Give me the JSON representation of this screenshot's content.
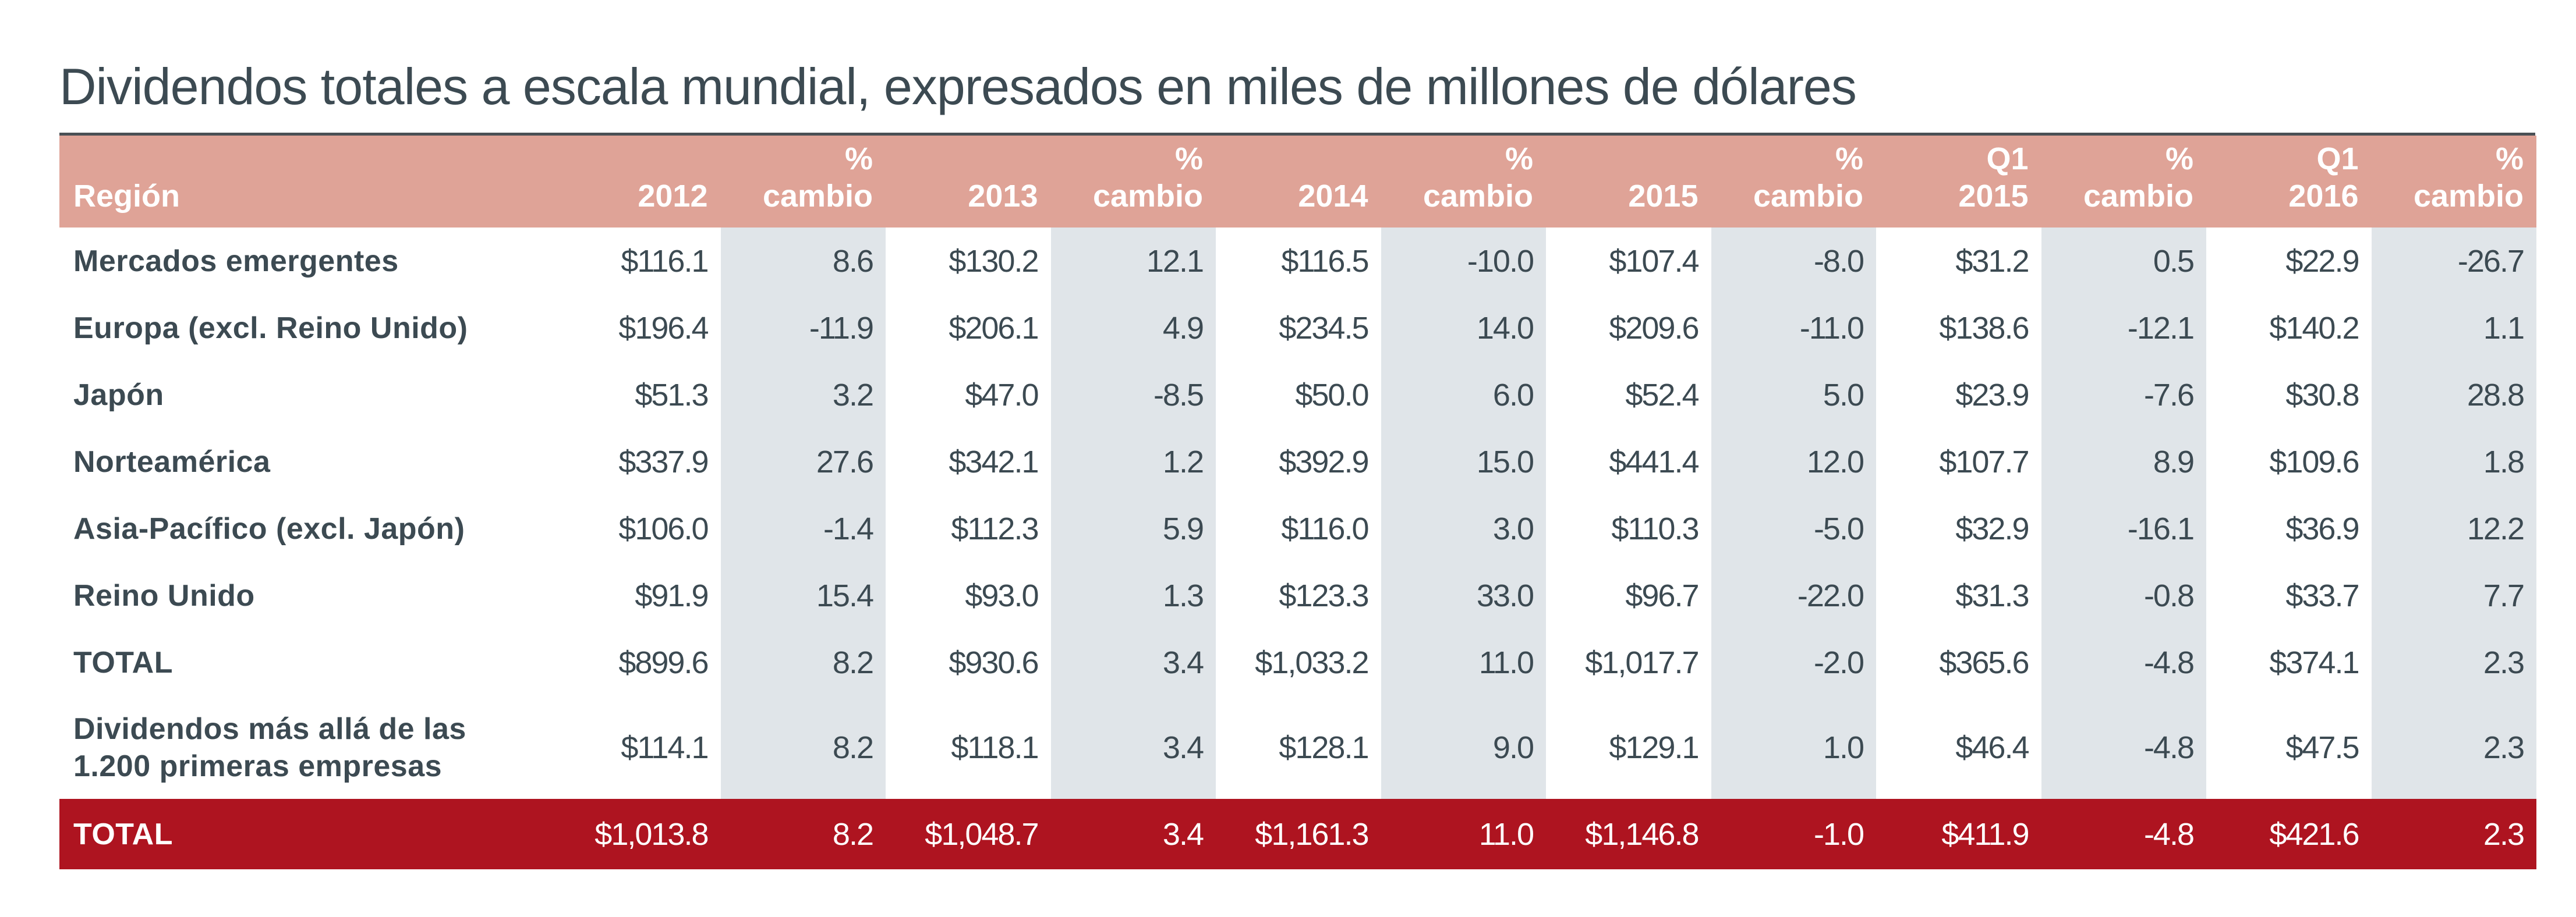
{
  "title": "Dividendos totales a escala mundial, expresados en miles de millones de dólares",
  "colors": {
    "header": "#dfa397",
    "shade": "#e0e5e9",
    "total_bar": "#ae1420",
    "text": "#3c4a52"
  },
  "columns": [
    {
      "line1": "",
      "line2": "Región"
    },
    {
      "line1": "",
      "line2": "2012"
    },
    {
      "line1": "%",
      "line2": "cambio"
    },
    {
      "line1": "",
      "line2": "2013"
    },
    {
      "line1": "%",
      "line2": "cambio"
    },
    {
      "line1": "",
      "line2": "2014"
    },
    {
      "line1": "%",
      "line2": "cambio"
    },
    {
      "line1": "",
      "line2": "2015"
    },
    {
      "line1": "%",
      "line2": "cambio"
    },
    {
      "line1": "Q1",
      "line2": "2015"
    },
    {
      "line1": "%",
      "line2": "cambio"
    },
    {
      "line1": "Q1",
      "line2": "2016"
    },
    {
      "line1": "%",
      "line2": "cambio"
    }
  ],
  "rows": [
    [
      "Mercados emergentes",
      "$116.1",
      "8.6",
      "$130.2",
      "12.1",
      "$116.5",
      "-10.0",
      "$107.4",
      "-8.0",
      "$31.2",
      "0.5",
      "$22.9",
      "-26.7"
    ],
    [
      "Europa (excl. Reino Unido)",
      "$196.4",
      "-11.9",
      "$206.1",
      "4.9",
      "$234.5",
      "14.0",
      "$209.6",
      "-11.0",
      "$138.6",
      "-12.1",
      "$140.2",
      "1.1"
    ],
    [
      "Japón",
      "$51.3",
      "3.2",
      "$47.0",
      "-8.5",
      "$50.0",
      "6.0",
      "$52.4",
      "5.0",
      "$23.9",
      "-7.6",
      "$30.8",
      "28.8"
    ],
    [
      "Norteamérica",
      "$337.9",
      "27.6",
      "$342.1",
      "1.2",
      "$392.9",
      "15.0",
      "$441.4",
      "12.0",
      "$107.7",
      "8.9",
      "$109.6",
      "1.8"
    ],
    [
      "Asia-Pacífico (excl. Japón)",
      "$106.0",
      "-1.4",
      "$112.3",
      "5.9",
      "$116.0",
      "3.0",
      "$110.3",
      "-5.0",
      "$32.9",
      "-16.1",
      "$36.9",
      "12.2"
    ],
    [
      "Reino Unido",
      "$91.9",
      "15.4",
      "$93.0",
      "1.3",
      "$123.3",
      "33.0",
      "$96.7",
      "-22.0",
      "$31.3",
      "-0.8",
      "$33.7",
      "7.7"
    ],
    [
      "TOTAL",
      "$899.6",
      "8.2",
      "$930.6",
      "3.4",
      "$1,033.2",
      "11.0",
      "$1,017.7",
      "-2.0",
      "$365.6",
      "-4.8",
      "$374.1",
      "2.3"
    ],
    [
      "Dividendos más allá de las 1.200 primeras empresas",
      "$114.1",
      "8.2",
      "$118.1",
      "3.4",
      "$128.1",
      "9.0",
      "$129.1",
      "1.0",
      "$46.4",
      "-4.8",
      "$47.5",
      "2.3"
    ]
  ],
  "grand_total": [
    "TOTAL",
    "$1,013.8",
    "8.2",
    "$1,048.7",
    "3.4",
    "$1,161.3",
    "11.0",
    "$1,146.8",
    "-1.0",
    "$411.9",
    "-4.8",
    "$421.6",
    "2.3"
  ]
}
